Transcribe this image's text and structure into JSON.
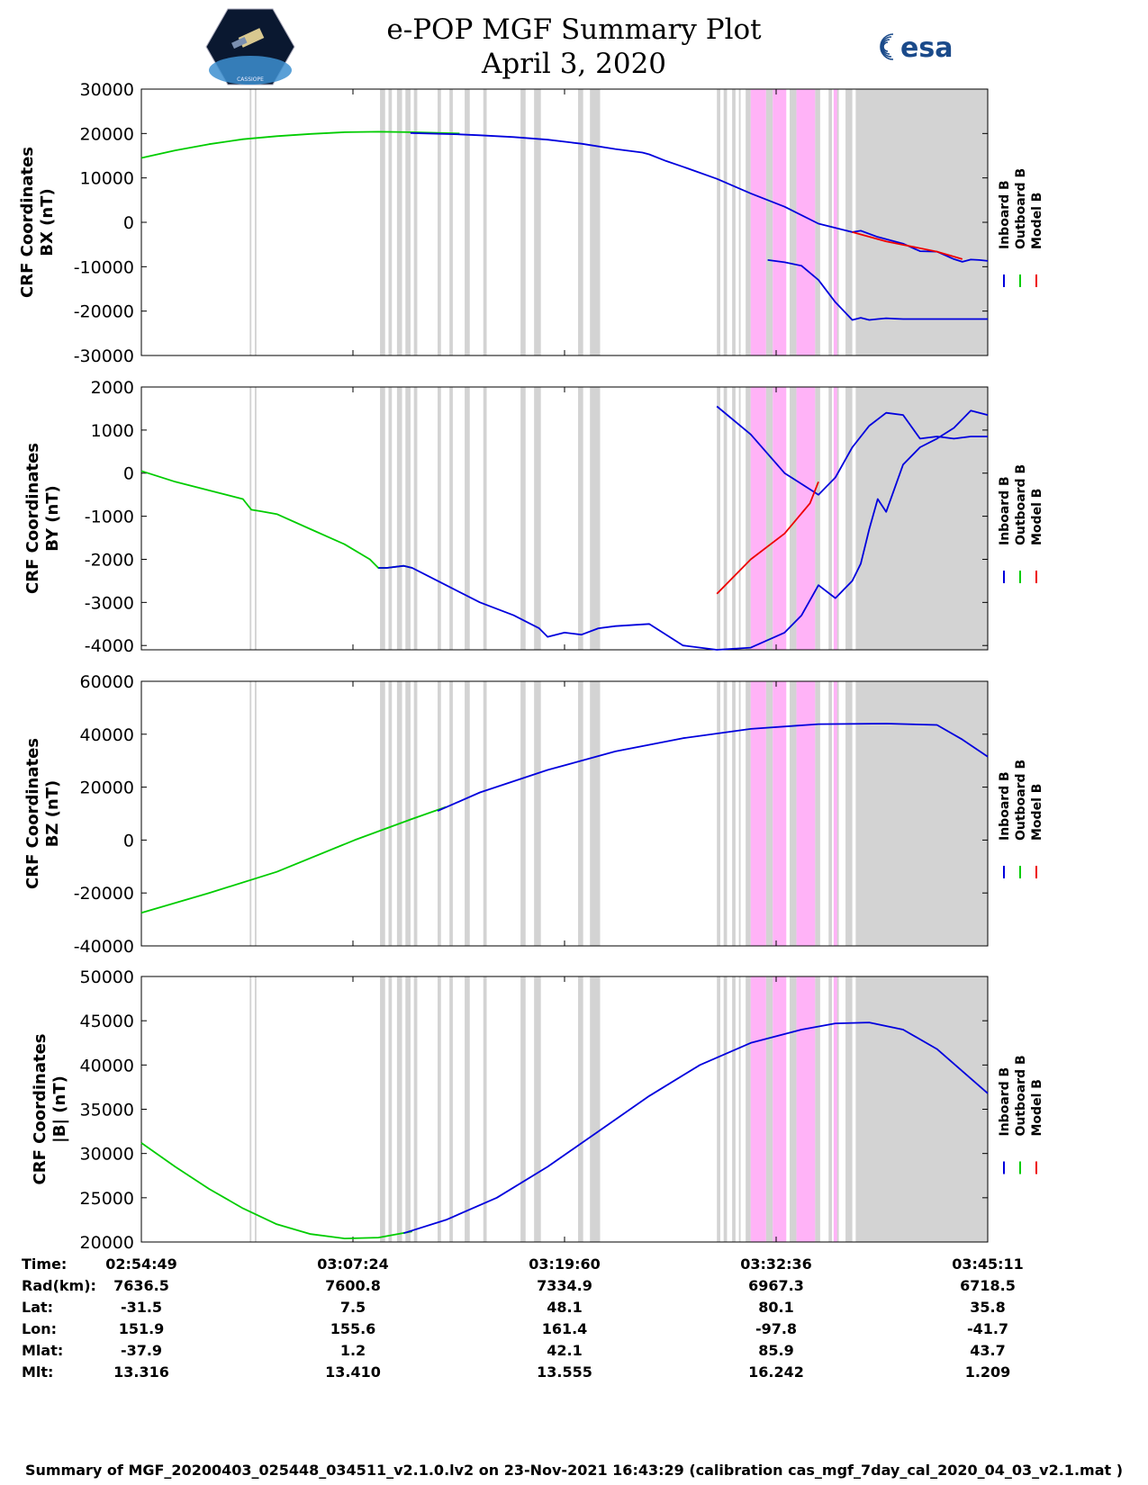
{
  "header": {
    "title_line1": "e-POP MGF Summary Plot",
    "title_line2": "April 3, 2020",
    "logo_left_text": "CASSIOPE",
    "logo_right_text": "esa"
  },
  "colors": {
    "inboard": "#0000dd",
    "outboard": "#00cc00",
    "model": "#ee0000",
    "gap_gray": "#d3d3d3",
    "gap_pink": "#ffb3f7"
  },
  "legend": [
    "Inboard B",
    "Outboard B",
    "Model B"
  ],
  "chart_data": [
    {
      "type": "line",
      "title": "",
      "ylabel": [
        "CRF Coordinates",
        "BX (nT)"
      ],
      "x_unit": "minutes since 02:54:49",
      "xlim": [
        0,
        50
      ],
      "ylim": [
        -30000,
        30000
      ],
      "yticks": [
        -30000,
        -20000,
        -10000,
        0,
        10000,
        20000,
        30000
      ],
      "ytick_labels": [
        "-30000",
        "-20000",
        "-10000",
        "0",
        "10000",
        "20000",
        "30000"
      ],
      "series": [
        {
          "name": "Outboard B",
          "color": "outboard",
          "x": [
            0,
            2,
            4,
            6,
            8,
            10,
            12,
            14,
            16,
            18.8
          ],
          "y": [
            14500,
            16200,
            17600,
            18700,
            19400,
            19900,
            20300,
            20400,
            20300,
            20000
          ]
        },
        {
          "name": "Inboard B",
          "color": "inboard",
          "x": [
            15.9,
            18.8,
            20,
            22,
            24,
            26,
            28,
            29.6,
            30,
            31,
            32,
            34,
            36,
            38,
            40,
            42,
            42.5,
            43.5,
            44.5,
            45,
            46,
            47,
            48,
            48.5,
            49,
            49.5,
            50
          ],
          "y": [
            20100,
            19800,
            19600,
            19200,
            18600,
            17700,
            16500,
            15700,
            15300,
            13800,
            12500,
            9800,
            6500,
            3500,
            -300,
            -2200,
            -1900,
            -3300,
            -4300,
            -4800,
            -6500,
            -6600,
            -8300,
            -8900,
            -8400,
            -8500,
            -8700
          ]
        },
        {
          "name": "Inboard B (tail)",
          "color": "inboard",
          "x": [
            37,
            38,
            39,
            40,
            41,
            42,
            42.5,
            43,
            43.5,
            44,
            44.5,
            45,
            45.5,
            46,
            46.5,
            47,
            47.5,
            48,
            48.5,
            49,
            49.5,
            50
          ],
          "y": [
            -8500,
            -9000,
            -9800,
            -13000,
            -18000,
            -22000,
            -21500,
            -22000,
            -21800,
            -21600,
            -21700,
            -21800,
            -21800,
            -21800,
            -21800,
            -21800,
            -21800,
            -21800,
            -21800,
            -21800,
            -21800,
            -21800
          ]
        },
        {
          "name": "Model B",
          "color": "model",
          "x": [
            42,
            44,
            47,
            48.5
          ],
          "y": [
            -2200,
            -4300,
            -6600,
            -8300
          ]
        }
      ]
    },
    {
      "type": "line",
      "title": "",
      "ylabel": [
        "CRF Coordinates",
        "BY (nT)"
      ],
      "x_unit": "minutes since 02:54:49",
      "xlim": [
        0,
        50
      ],
      "ylim": [
        -4100,
        2000
      ],
      "yticks": [
        -4000,
        -3000,
        -2000,
        -1000,
        0,
        1000,
        2000
      ],
      "ytick_labels": [
        "-4000",
        "-3000",
        "-2000",
        "-1000",
        "0",
        "1000",
        "2000"
      ],
      "series": [
        {
          "name": "Outboard B",
          "color": "outboard",
          "x": [
            0,
            2,
            4,
            6,
            6.5,
            7,
            8,
            10,
            12,
            13.5,
            14,
            14.5,
            15.5,
            16
          ],
          "y": [
            50,
            -200,
            -400,
            -600,
            -850,
            -880,
            -950,
            -1300,
            -1650,
            -2000,
            -2200,
            -2200,
            -2150,
            -2200
          ]
        },
        {
          "name": "Inboard B",
          "color": "inboard",
          "x": [
            14,
            14.5,
            15.5,
            16,
            18,
            20,
            22,
            23,
            23.5,
            24,
            25,
            26,
            27,
            28,
            30,
            32,
            34,
            36,
            38,
            39,
            40,
            41,
            42,
            42.5,
            43,
            43.5,
            44,
            45,
            46,
            47,
            48,
            49,
            50
          ],
          "y": [
            -2200,
            -2200,
            -2150,
            -2200,
            -2600,
            -3000,
            -3300,
            -3500,
            -3600,
            -3800,
            -3700,
            -3750,
            -3600,
            -3550,
            -3500,
            -4000,
            -4100,
            -4050,
            -3700,
            -3300,
            -2600,
            -2900,
            -2500,
            -2100,
            -1300,
            -600,
            -900,
            200,
            600,
            800,
            1050,
            1450,
            1350
          ]
        },
        {
          "name": "Inboard B (tail)",
          "color": "inboard",
          "x": [
            34,
            36,
            38,
            40,
            41,
            42,
            43,
            44,
            45,
            46,
            47,
            48,
            49,
            50
          ],
          "y": [
            1550,
            900,
            0,
            -500,
            -100,
            600,
            1100,
            1400,
            1350,
            800,
            850,
            800,
            850,
            850
          ]
        },
        {
          "name": "Model B",
          "color": "model",
          "x": [
            34,
            36,
            38,
            39.5,
            40
          ],
          "y": [
            -2800,
            -2000,
            -1400,
            -700,
            -200
          ]
        }
      ]
    },
    {
      "type": "line",
      "title": "",
      "ylabel": [
        "CRF Coordinates",
        "BZ (nT)"
      ],
      "x_unit": "minutes since 02:54:49",
      "xlim": [
        0,
        50
      ],
      "ylim": [
        -40000,
        60000
      ],
      "yticks": [
        -40000,
        -20000,
        0,
        20000,
        40000,
        60000
      ],
      "ytick_labels": [
        "-40000",
        "-20000",
        "0",
        "20000",
        "40000",
        "60000"
      ],
      "series": [
        {
          "name": "Outboard B",
          "color": "outboard",
          "x": [
            0,
            4,
            8,
            12.6,
            16,
            18
          ],
          "y": [
            -27500,
            -20000,
            -12000,
            0,
            8000,
            12500
          ]
        },
        {
          "name": "Inboard B",
          "color": "inboard",
          "x": [
            17.5,
            20,
            24,
            28,
            32,
            36,
            40,
            44,
            47,
            48.5,
            50
          ],
          "y": [
            11000,
            18000,
            26500,
            33500,
            38500,
            42000,
            43800,
            44000,
            43500,
            38000,
            31500
          ]
        }
      ]
    },
    {
      "type": "line",
      "title": "",
      "ylabel": [
        "CRF Coordinates",
        "|B| (nT)"
      ],
      "x_unit": "minutes since 02:54:49",
      "xlim": [
        0,
        50
      ],
      "ylim": [
        20000,
        50000
      ],
      "yticks": [
        20000,
        25000,
        30000,
        35000,
        40000,
        45000,
        50000
      ],
      "ytick_labels": [
        "20000",
        "25000",
        "30000",
        "35000",
        "40000",
        "45000",
        "50000"
      ],
      "series": [
        {
          "name": "Outboard B",
          "color": "outboard",
          "x": [
            0,
            2,
            4,
            6,
            8,
            10,
            12,
            14,
            16
          ],
          "y": [
            31200,
            28500,
            26000,
            23800,
            22000,
            20900,
            20400,
            20500,
            21200
          ]
        },
        {
          "name": "Inboard B",
          "color": "inboard",
          "x": [
            15.5,
            18,
            21,
            24,
            27,
            30,
            33,
            36,
            39,
            41,
            43,
            45,
            47,
            50
          ],
          "y": [
            21000,
            22500,
            25000,
            28500,
            32500,
            36500,
            40000,
            42500,
            44000,
            44700,
            44800,
            44000,
            41800,
            36800
          ]
        }
      ]
    }
  ],
  "data_gaps_minutes": {
    "gray": [
      [
        6.4,
        6.5
      ],
      [
        6.7,
        6.8
      ],
      [
        14.1,
        14.4
      ],
      [
        14.6,
        14.8
      ],
      [
        15.1,
        15.4
      ],
      [
        15.6,
        15.9
      ],
      [
        16.1,
        16.3
      ],
      [
        17.5,
        17.7
      ],
      [
        18.2,
        18.4
      ],
      [
        19.1,
        19.4
      ],
      [
        20.2,
        20.4
      ],
      [
        22.4,
        22.7
      ],
      [
        23.2,
        23.6
      ],
      [
        25.8,
        26.1
      ],
      [
        26.5,
        27.1
      ],
      [
        34.0,
        34.2
      ],
      [
        34.4,
        34.6
      ],
      [
        34.9,
        35.1
      ],
      [
        35.3,
        35.4
      ],
      [
        35.7,
        36.0
      ],
      [
        36.9,
        37.3
      ],
      [
        38.3,
        38.7
      ],
      [
        39.8,
        40.1
      ],
      [
        40.6,
        40.8
      ],
      [
        40.9,
        41.2
      ],
      [
        41.6,
        42.0
      ],
      [
        42.2,
        50.0
      ]
    ],
    "pink": [
      [
        36.0,
        36.9
      ],
      [
        37.3,
        38.1
      ],
      [
        38.7,
        39.8
      ],
      [
        40.9,
        41.1
      ]
    ]
  },
  "time_axis": {
    "row_labels": [
      "Time:",
      "Rad(km):",
      "Lat:",
      "Lon:",
      "Mlat:",
      "Mlt:"
    ],
    "columns": [
      {
        "time": "02:54:49",
        "rad": "7636.5",
        "lat": "-31.5",
        "lon": "151.9",
        "mlat": "-37.9",
        "mlt": "13.316"
      },
      {
        "time": "03:07:24",
        "rad": "7600.8",
        "lat": "7.5",
        "lon": "155.6",
        "mlat": "1.2",
        "mlt": "13.410"
      },
      {
        "time": "03:19:60",
        "rad": "7334.9",
        "lat": "48.1",
        "lon": "161.4",
        "mlat": "42.1",
        "mlt": "13.555"
      },
      {
        "time": "03:32:36",
        "rad": "6967.3",
        "lat": "80.1",
        "lon": "-97.8",
        "mlat": "85.9",
        "mlt": "16.242"
      },
      {
        "time": "03:45:11",
        "rad": "6718.5",
        "lat": "35.8",
        "lon": "-41.7",
        "mlat": "43.7",
        "mlt": "1.209"
      }
    ]
  },
  "footer": "Summary of MGF_20200403_025448_034511_v2.1.0.lv2 on 23-Nov-2021 16:43:29 (calibration cas_mgf_7day_cal_2020_04_03_v2.1.mat )"
}
